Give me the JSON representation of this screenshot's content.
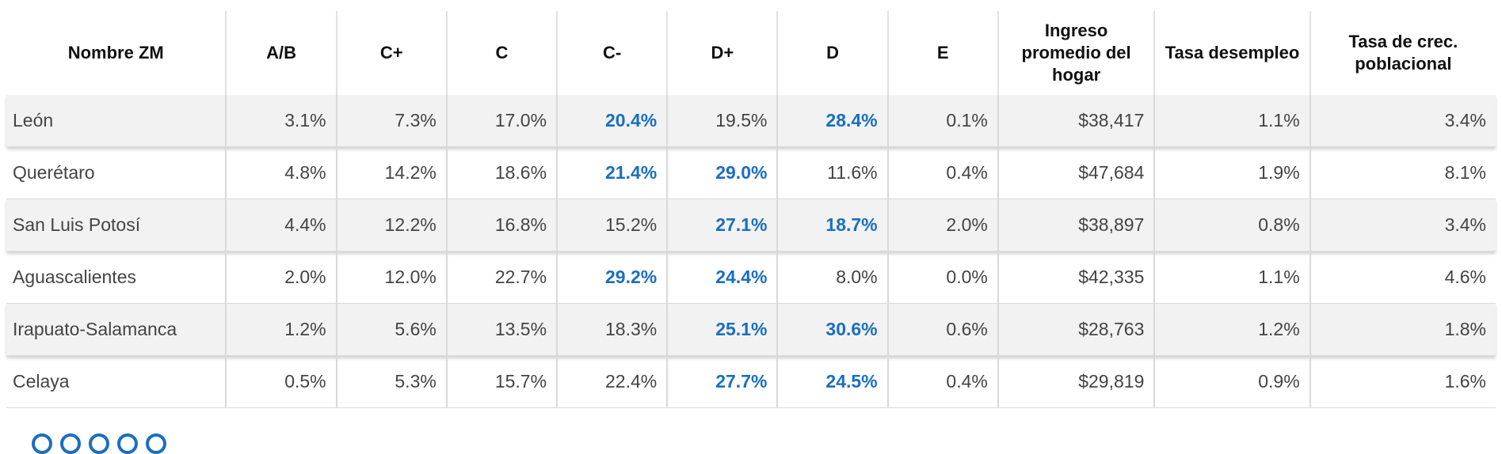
{
  "accent_color": "#1a6fbf",
  "headers": [
    "Nombre ZM",
    "A/B",
    "C+",
    "C",
    "C-",
    "D+",
    "D",
    "E",
    "Ingreso promedio del hogar",
    "Tasa desempleo",
    "Tasa de crec. poblacional"
  ],
  "rows": [
    {
      "cells": [
        "León",
        "3.1%",
        "7.3%",
        "17.0%",
        "20.4%",
        "19.5%",
        "28.4%",
        "0.1%",
        "$38,417",
        "1.1%",
        "3.4%"
      ],
      "highlight": [
        4,
        6
      ]
    },
    {
      "cells": [
        "Querétaro",
        "4.8%",
        "14.2%",
        "18.6%",
        "21.4%",
        "29.0%",
        "11.6%",
        "0.4%",
        "$47,684",
        "1.9%",
        "8.1%"
      ],
      "highlight": [
        4,
        5
      ]
    },
    {
      "cells": [
        "San Luis Potosí",
        "4.4%",
        "12.2%",
        "16.8%",
        "15.2%",
        "27.1%",
        "18.7%",
        "2.0%",
        "$38,897",
        "0.8%",
        "3.4%"
      ],
      "highlight": [
        5,
        6
      ]
    },
    {
      "cells": [
        "Aguascalientes",
        "2.0%",
        "12.0%",
        "22.7%",
        "29.2%",
        "24.4%",
        "8.0%",
        "0.0%",
        "$42,335",
        "1.1%",
        "4.6%"
      ],
      "highlight": [
        4,
        5
      ]
    },
    {
      "cells": [
        "Irapuato-Salamanca",
        "1.2%",
        "5.6%",
        "13.5%",
        "18.3%",
        "25.1%",
        "30.6%",
        "0.6%",
        "$28,763",
        "1.2%",
        "1.8%"
      ],
      "highlight": [
        5,
        6
      ]
    },
    {
      "cells": [
        "Celaya",
        "0.5%",
        "5.3%",
        "15.7%",
        "22.4%",
        "27.7%",
        "24.5%",
        "0.4%",
        "$29,819",
        "0.9%",
        "1.6%"
      ],
      "highlight": [
        5,
        6
      ]
    }
  ]
}
